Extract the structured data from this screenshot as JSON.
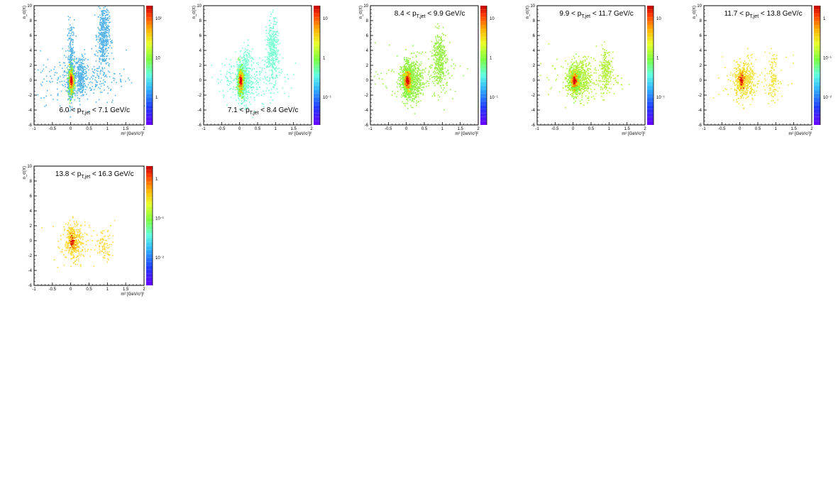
{
  "chart_data": [
    {
      "type": "heatmap",
      "title": "6.0 < p_T,jet < 7.1 GeV/c",
      "title_parts": {
        "pre": "6.0 < p",
        "sub": "T,jet",
        "post": " < 7.1 GeV/c"
      },
      "xlabel": "m² [GeV/c²]²",
      "ylabel": "n_σ(π)",
      "xlim": [
        -1,
        2
      ],
      "ylim": [
        -6,
        10
      ],
      "x_ticks": [
        "-1",
        "-0.5",
        "0",
        "0.5",
        "1",
        "1.5",
        "2"
      ],
      "y_ticks": [
        "-6",
        "-4",
        "-2",
        "0",
        "2",
        "4",
        "6",
        "8",
        "10"
      ],
      "colorbar_labels": [
        "10²",
        "10",
        "1"
      ],
      "dominant_color": "#56b4e9",
      "clusters": [
        {
          "x": 0.0,
          "y": 0.0,
          "sx": 0.04,
          "sy": 1.0,
          "n": 650
        },
        {
          "x": 0.25,
          "y": 0.5,
          "sx": 0.06,
          "sy": 1.3,
          "n": 250
        },
        {
          "x": 0.0,
          "y": 3.0,
          "sx": 0.05,
          "sy": 2.5,
          "n": 200
        },
        {
          "x": 0.88,
          "y": 6.0,
          "sx": 0.08,
          "sy": 2.2,
          "n": 450
        },
        {
          "x": 0.3,
          "y": 0.5,
          "sx": 0.6,
          "sy": 1.8,
          "n": 300
        }
      ]
    },
    {
      "type": "heatmap",
      "title": "7.1 < p_T,jet < 8.4 GeV/c",
      "title_parts": {
        "pre": "7.1 < p",
        "sub": "T,jet",
        "post": " < 8.4 GeV/c"
      },
      "xlabel": "m² [GeV/c²]²",
      "ylabel": "n_σ(π)",
      "xlim": [
        -1,
        2
      ],
      "ylim": [
        -6,
        10
      ],
      "x_ticks": [
        "-1",
        "-0.5",
        "0",
        "0.5",
        "1",
        "1.5",
        "2"
      ],
      "y_ticks": [
        "-6",
        "-4",
        "-2",
        "0",
        "2",
        "4",
        "6",
        "8",
        "10"
      ],
      "colorbar_labels": [
        "10",
        "1",
        "10⁻¹"
      ],
      "dominant_color": "#7fffd4",
      "clusters": [
        {
          "x": 0.02,
          "y": 0.0,
          "sx": 0.05,
          "sy": 1.0,
          "n": 600
        },
        {
          "x": 0.15,
          "y": 0.5,
          "sx": 0.08,
          "sy": 1.8,
          "n": 350
        },
        {
          "x": 0.9,
          "y": 4.0,
          "sx": 0.08,
          "sy": 2.0,
          "n": 380
        },
        {
          "x": 0.3,
          "y": 0.3,
          "sx": 0.5,
          "sy": 1.5,
          "n": 250
        }
      ]
    },
    {
      "type": "heatmap",
      "title": "8.4 < p_T,jet < 9.9 GeV/c",
      "title_parts": {
        "pre": "8.4 < p",
        "sub": "T,jet",
        "post": " < 9.9 GeV/c"
      },
      "xlabel": "m² [GeV/c²]²",
      "ylabel": "n_σ(π)",
      "xlim": [
        -1,
        2
      ],
      "ylim": [
        -6,
        10
      ],
      "x_ticks": [
        "-1",
        "-0.5",
        "0",
        "0.5",
        "1",
        "1.5",
        "2"
      ],
      "y_ticks": [
        "-6",
        "-4",
        "-2",
        "0",
        "2",
        "4",
        "6",
        "8",
        "10"
      ],
      "colorbar_labels": [
        "10",
        "1",
        "10⁻¹"
      ],
      "dominant_color": "#9aef4a",
      "clusters": [
        {
          "x": 0.02,
          "y": 0.0,
          "sx": 0.08,
          "sy": 1.1,
          "n": 600
        },
        {
          "x": 0.25,
          "y": 0.0,
          "sx": 0.1,
          "sy": 1.5,
          "n": 250
        },
        {
          "x": 0.9,
          "y": 3.0,
          "sx": 0.09,
          "sy": 1.8,
          "n": 380
        },
        {
          "x": 0.3,
          "y": 0.3,
          "sx": 0.5,
          "sy": 1.5,
          "n": 200
        }
      ]
    },
    {
      "type": "heatmap",
      "title": "9.9 < p_T,jet < 11.7 GeV/c",
      "title_parts": {
        "pre": "9.9 < p",
        "sub": "T,jet",
        "post": " < 11.7 GeV/c"
      },
      "xlabel": "m² [GeV/c²]²",
      "ylabel": "n_σ(π)",
      "xlim": [
        -1,
        2
      ],
      "ylim": [
        -6,
        10
      ],
      "x_ticks": [
        "-1",
        "-0.5",
        "0",
        "0.5",
        "1",
        "1.5",
        "2"
      ],
      "y_ticks": [
        "-6",
        "-4",
        "-2",
        "0",
        "2",
        "4",
        "6",
        "8",
        "10"
      ],
      "colorbar_labels": [
        "10",
        "1",
        "10⁻¹"
      ],
      "dominant_color": "#b4ef3c",
      "clusters": [
        {
          "x": 0.03,
          "y": 0.0,
          "sx": 0.09,
          "sy": 1.0,
          "n": 450
        },
        {
          "x": 0.25,
          "y": 0.3,
          "sx": 0.12,
          "sy": 1.4,
          "n": 250
        },
        {
          "x": 0.9,
          "y": 1.5,
          "sx": 0.08,
          "sy": 1.5,
          "n": 200
        },
        {
          "x": 0.3,
          "y": 0.3,
          "sx": 0.5,
          "sy": 1.3,
          "n": 180
        }
      ]
    },
    {
      "type": "heatmap",
      "title": "11.7 < p_T,jet < 13.8 GeV/c",
      "title_parts": {
        "pre": "11.7 < p",
        "sub": "T,jet",
        "post": " < 13.8 GeV/c"
      },
      "xlabel": "m² [GeV/c²]²",
      "ylabel": "n_σ(π)",
      "xlim": [
        -1,
        2
      ],
      "ylim": [
        -6,
        10
      ],
      "x_ticks": [
        "-1",
        "-0.5",
        "0",
        "0.5",
        "1",
        "1.5",
        "2"
      ],
      "y_ticks": [
        "-6",
        "-4",
        "-2",
        "0",
        "2",
        "4",
        "6",
        "8",
        "10"
      ],
      "colorbar_labels": [
        "1",
        "10⁻¹",
        "10⁻²"
      ],
      "dominant_color": "#f2e23c",
      "clusters": [
        {
          "x": 0.03,
          "y": 0.0,
          "sx": 0.1,
          "sy": 1.2,
          "n": 300
        },
        {
          "x": 0.25,
          "y": 0.0,
          "sx": 0.1,
          "sy": 1.3,
          "n": 150
        },
        {
          "x": 0.9,
          "y": 0.5,
          "sx": 0.08,
          "sy": 1.5,
          "n": 110
        },
        {
          "x": 0.3,
          "y": 0.3,
          "sx": 0.5,
          "sy": 1.5,
          "n": 80
        }
      ]
    },
    {
      "type": "heatmap",
      "title": "13.8 < p_T,jet < 16.3 GeV/c",
      "title_parts": {
        "pre": "13.8 < p",
        "sub": "T,jet",
        "post": " < 16.3 GeV/c"
      },
      "xlabel": "m² [GeV/c²]²",
      "ylabel": "n_σ(π)",
      "xlim": [
        -1,
        2
      ],
      "ylim": [
        -6,
        10
      ],
      "x_ticks": [
        "-1",
        "-0.5",
        "0",
        "0.5",
        "1",
        "1.5",
        "2"
      ],
      "y_ticks": [
        "-6",
        "-4",
        "-2",
        "0",
        "2",
        "4",
        "6",
        "8",
        "10"
      ],
      "colorbar_labels": [
        "1",
        "10⁻¹",
        "10⁻²"
      ],
      "dominant_color": "#ffd83c",
      "clusters": [
        {
          "x": 0.03,
          "y": 0.0,
          "sx": 0.1,
          "sy": 1.2,
          "n": 250
        },
        {
          "x": 0.2,
          "y": -0.5,
          "sx": 0.1,
          "sy": 1.2,
          "n": 100
        },
        {
          "x": 0.9,
          "y": -0.5,
          "sx": 0.1,
          "sy": 1.0,
          "n": 80
        },
        {
          "x": 0.3,
          "y": 0.0,
          "sx": 0.5,
          "sy": 1.5,
          "n": 60
        }
      ]
    }
  ]
}
